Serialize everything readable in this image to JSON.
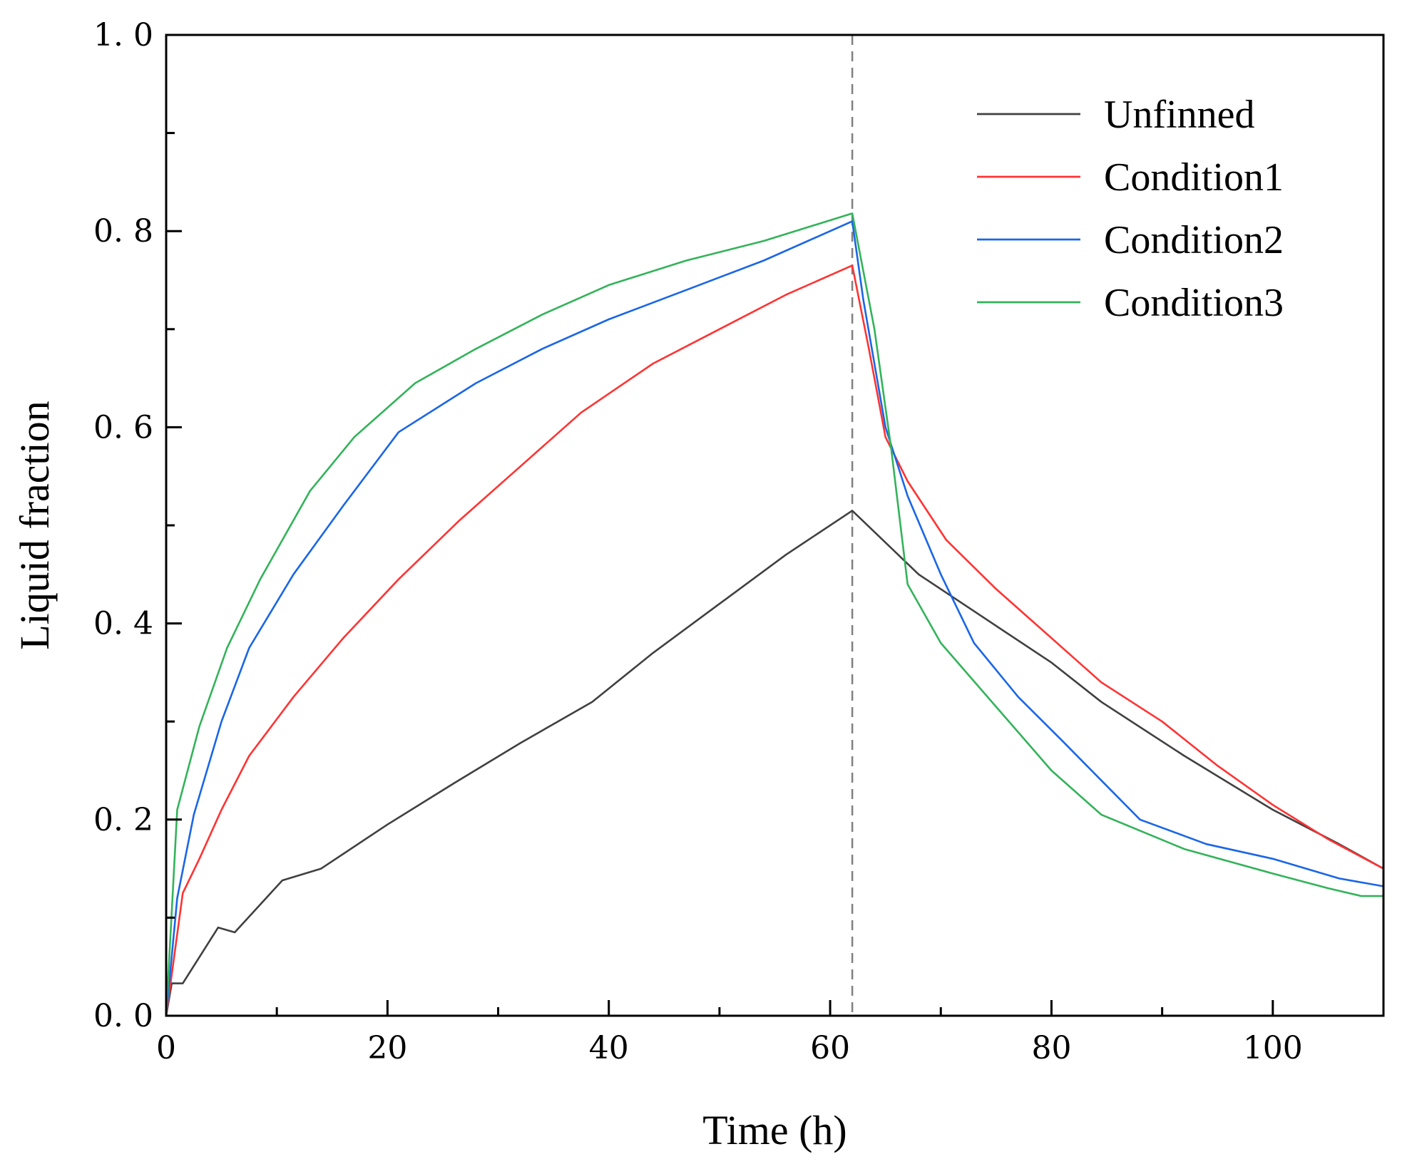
{
  "chart_data": {
    "type": "line",
    "title": "",
    "xlabel": "Time (h)",
    "ylabel": "Liquid fraction",
    "xlim": [
      0,
      110
    ],
    "ylim": [
      0,
      1.0
    ],
    "xticks": [
      0,
      20,
      40,
      60,
      80,
      100
    ],
    "xtick_labels": [
      "0",
      "20",
      "40",
      "60",
      "80",
      "100"
    ],
    "yticks": [
      0.0,
      0.2,
      0.4,
      0.6,
      0.8,
      1.0
    ],
    "ytick_labels": [
      "0. 0",
      "0. 2",
      "0. 4",
      "0. 6",
      "0. 8",
      "1. 0"
    ],
    "grid": false,
    "legend_position": "top-right",
    "reference_line": {
      "x": 62,
      "style": "dashed",
      "color": "#808080"
    },
    "series": [
      {
        "name": "Unfinned",
        "color": "#404040",
        "x": [
          0,
          0.5,
          1.5,
          4.7,
          6.2,
          10.5,
          14,
          20,
          26,
          32,
          38.5,
          44,
          50,
          56,
          62,
          68,
          74,
          80,
          84.5,
          92,
          100,
          106,
          110
        ],
        "y": [
          0.0,
          0.033,
          0.033,
          0.09,
          0.085,
          0.138,
          0.15,
          0.195,
          0.237,
          0.278,
          0.32,
          0.37,
          0.42,
          0.47,
          0.515,
          0.45,
          0.405,
          0.36,
          0.32,
          0.265,
          0.21,
          0.175,
          0.15
        ]
      },
      {
        "name": "Condition1",
        "color": "#ff3333",
        "x": [
          0,
          1.5,
          3,
          5,
          7.5,
          11.5,
          16,
          21,
          26.5,
          31.5,
          37.5,
          44,
          50,
          56,
          62,
          63.5,
          65,
          67,
          70.5,
          75,
          80,
          84.5,
          90,
          95,
          100,
          105,
          110
        ],
        "y": [
          0.0,
          0.125,
          0.16,
          0.21,
          0.265,
          0.325,
          0.385,
          0.445,
          0.505,
          0.555,
          0.615,
          0.665,
          0.7,
          0.735,
          0.765,
          0.68,
          0.59,
          0.545,
          0.485,
          0.435,
          0.385,
          0.34,
          0.3,
          0.255,
          0.215,
          0.18,
          0.15
        ]
      },
      {
        "name": "Condition2",
        "color": "#1a66e6",
        "x": [
          0,
          1,
          2.5,
          5,
          7.5,
          11.5,
          16,
          21,
          28,
          34,
          40,
          47,
          54,
          62,
          63,
          65,
          67,
          70,
          73,
          77,
          81,
          84.5,
          88,
          94,
          100,
          106,
          110
        ],
        "y": [
          0.0,
          0.12,
          0.205,
          0.3,
          0.375,
          0.45,
          0.52,
          0.595,
          0.645,
          0.68,
          0.71,
          0.74,
          0.77,
          0.81,
          0.73,
          0.6,
          0.53,
          0.45,
          0.38,
          0.325,
          0.28,
          0.24,
          0.2,
          0.175,
          0.16,
          0.14,
          0.132
        ]
      },
      {
        "name": "Condition3",
        "color": "#33b35a",
        "x": [
          0,
          1,
          3,
          5.5,
          8.5,
          13,
          17,
          22.5,
          28,
          34,
          40,
          47,
          54,
          62,
          64,
          65.5,
          67,
          70,
          75,
          80,
          84.5,
          92,
          100,
          105,
          108,
          110
        ],
        "y": [
          0.0,
          0.21,
          0.295,
          0.375,
          0.445,
          0.535,
          0.59,
          0.645,
          0.68,
          0.715,
          0.745,
          0.77,
          0.79,
          0.818,
          0.7,
          0.58,
          0.44,
          0.38,
          0.315,
          0.25,
          0.205,
          0.17,
          0.145,
          0.13,
          0.122,
          0.122
        ]
      }
    ]
  }
}
